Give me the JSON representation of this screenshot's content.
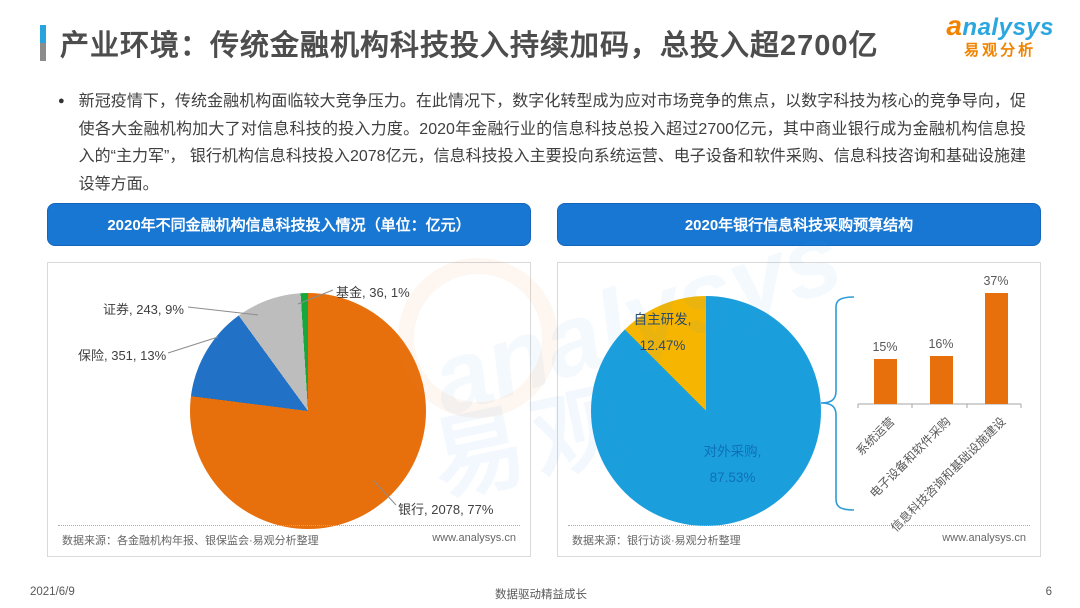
{
  "header": {
    "title": "产业环境：传统金融机构科技投入持续加码，总投入超2700亿",
    "logo": {
      "brand_en": "analysys",
      "brand_cn": "易观分析"
    }
  },
  "summary": "新冠疫情下，传统金融机构面临较大竞争压力。在此情况下，数字化转型成为应对市场竞争的焦点，以数字科技为核心的竞争导向，促使各大金融机构加大了对信息科技的投入力度。2020年金融行业的信息科技总投入超过2700亿元，其中商业银行成为金融机构信息投入的“主力军”， 银行机构信息科技投入2078亿元，信息科技投入主要投向系统运营、电子设备和软件采购、信息科技咨询和基础设施建设等方面。",
  "panels": {
    "left": {
      "header": "2020年不同金融机构信息科技投入情况（单位：亿元）",
      "source": "数据来源：各金融机构年报、银保监会·易观分析整理",
      "website": "www.analysys.cn"
    },
    "right": {
      "header": "2020年银行信息科技采购预算结构",
      "source": "数据来源：银行访谈·易观分析整理",
      "website": "www.analysys.cn"
    }
  },
  "footer": {
    "date": "2021/6/9",
    "slogan": "数据驱动精益成长",
    "page": "6"
  },
  "chart_data": [
    {
      "type": "pie",
      "title": "2020年不同金融机构信息科技投入情况（单位：亿元）",
      "unit": "亿元",
      "start_angle_deg": 0,
      "direction": "clockwise",
      "slices": [
        {
          "label": "银行",
          "value": 2078,
          "pct": 77,
          "color": "#E7700D",
          "display": "银行, 2078, 77%"
        },
        {
          "label": "保险",
          "value": 351,
          "pct": 13,
          "color": "#2172C6",
          "display": "保险, 351, 13%"
        },
        {
          "label": "证券",
          "value": 243,
          "pct": 9,
          "color": "#BDBDBD",
          "display": "证券, 243, 9%"
        },
        {
          "label": "基金",
          "value": 36,
          "pct": 1,
          "color": "#17A83B",
          "display": "基金, 36, 1%"
        }
      ]
    },
    {
      "type": "pie",
      "title": "2020年银行信息科技采购预算结构",
      "start_angle_deg": 0,
      "direction": "clockwise",
      "slices": [
        {
          "label": "对外采购",
          "pct": 87.53,
          "color": "#1A9FDC",
          "display_label": "对外采购,",
          "display_pct": "87.53%"
        },
        {
          "label": "自主研发",
          "pct": 12.47,
          "color": "#F5B500",
          "display_label": "自主研发,",
          "display_pct": "12.47%"
        }
      ]
    },
    {
      "type": "bar",
      "categories": [
        "系统运营",
        "电子设备和软件采购",
        "信息科技咨询和基础设施建设"
      ],
      "values": [
        15,
        16,
        37
      ],
      "labels": [
        "15%",
        "16%",
        "37%"
      ],
      "unit": "%",
      "color": "#E7700D",
      "ylim": [
        0,
        40
      ]
    }
  ]
}
